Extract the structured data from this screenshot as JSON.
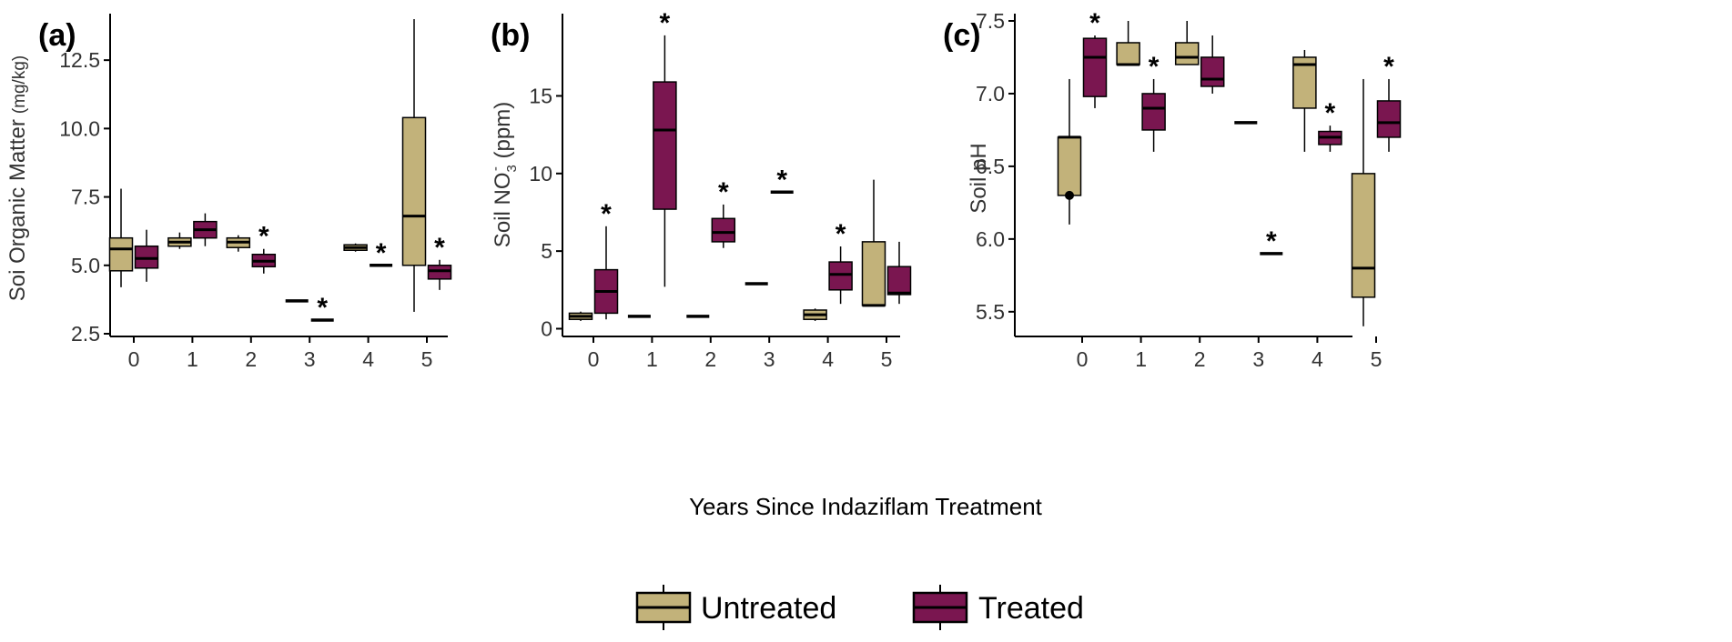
{
  "colors": {
    "untreated": "#C2B27A",
    "treated": "#7A1650",
    "axis": "#000000",
    "outlier": "#000000"
  },
  "common": {
    "xlabel": "Years Since Indaziflam Treatment",
    "legend": {
      "untreated": "Untreated",
      "treated": "Treated"
    }
  },
  "chart_data": [
    {
      "type": "boxplot",
      "panel_label": "(a)",
      "ylabel_main": "Soi Organic Matter",
      "ylabel_unit": "(mg/kg)",
      "xlabel": "Years Since Indaziflam Treatment",
      "categories": [
        "0",
        "1",
        "2",
        "3",
        "4",
        "5"
      ],
      "ylim": [
        2.4,
        14.2
      ],
      "yticks": [
        2.5,
        5.0,
        7.5,
        10.0,
        12.5
      ],
      "ytick_labels": [
        "2.5",
        "5.0",
        "7.5",
        "10.0",
        "12.5"
      ],
      "series": [
        {
          "name": "Untreated",
          "boxes": [
            {
              "min": 4.2,
              "q1": 4.8,
              "median": 5.6,
              "q3": 6.0,
              "max": 7.8
            },
            {
              "min": 5.6,
              "q1": 5.7,
              "median": 5.85,
              "q3": 6.0,
              "max": 6.2
            },
            {
              "min": 5.5,
              "q1": 5.65,
              "median": 5.85,
              "q3": 6.0,
              "max": 6.1
            },
            {
              "min": 3.7,
              "q1": 3.7,
              "median": 3.7,
              "q3": 3.7,
              "max": 3.7
            },
            {
              "min": 5.5,
              "q1": 5.55,
              "median": 5.65,
              "q3": 5.75,
              "max": 5.8
            },
            {
              "min": 3.3,
              "q1": 5.0,
              "median": 6.8,
              "q3": 10.4,
              "max": 14.0
            }
          ]
        },
        {
          "name": "Treated",
          "boxes": [
            {
              "min": 4.4,
              "q1": 4.9,
              "median": 5.25,
              "q3": 5.7,
              "max": 6.3
            },
            {
              "min": 5.7,
              "q1": 6.0,
              "median": 6.3,
              "q3": 6.6,
              "max": 6.9
            },
            {
              "min": 4.7,
              "q1": 4.95,
              "median": 5.15,
              "q3": 5.4,
              "max": 5.6
            },
            {
              "min": 3.0,
              "q1": 3.0,
              "median": 3.0,
              "q3": 3.0,
              "max": 3.0
            },
            {
              "min": 5.0,
              "q1": 5.0,
              "median": 5.0,
              "q3": 5.0,
              "max": 5.0
            },
            {
              "min": 4.1,
              "q1": 4.5,
              "median": 4.8,
              "q3": 5.0,
              "max": 5.2
            }
          ]
        }
      ],
      "significant_treated": [
        false,
        false,
        true,
        true,
        true,
        true
      ],
      "significance_marker": "*",
      "outliers": []
    },
    {
      "type": "boxplot",
      "panel_label": "(b)",
      "ylabel_pre": "Soil  NO",
      "ylabel_sub": "3",
      "ylabel_sup": "-",
      "ylabel_post": " (ppm)",
      "xlabel": "Years Since Indaziflam Treatment",
      "categories": [
        "0",
        "1",
        "2",
        "3",
        "4",
        "5"
      ],
      "ylim": [
        -0.5,
        20.3
      ],
      "yticks": [
        0,
        5,
        10,
        15
      ],
      "ytick_labels": [
        "0",
        "5",
        "10",
        "15"
      ],
      "series": [
        {
          "name": "Untreated",
          "boxes": [
            {
              "min": 0.5,
              "q1": 0.6,
              "median": 0.8,
              "q3": 1.0,
              "max": 1.1
            },
            {
              "min": 0.8,
              "q1": 0.8,
              "median": 0.8,
              "q3": 0.8,
              "max": 0.8
            },
            {
              "min": 0.8,
              "q1": 0.8,
              "median": 0.8,
              "q3": 0.8,
              "max": 0.8
            },
            {
              "min": 2.9,
              "q1": 2.9,
              "median": 2.9,
              "q3": 2.9,
              "max": 2.9
            },
            {
              "min": 0.5,
              "q1": 0.6,
              "median": 0.9,
              "q3": 1.2,
              "max": 1.3
            },
            {
              "min": 1.5,
              "q1": 1.5,
              "median": 1.5,
              "q3": 5.6,
              "max": 9.6
            }
          ]
        },
        {
          "name": "Treated",
          "boxes": [
            {
              "min": 0.6,
              "q1": 1.0,
              "median": 2.4,
              "q3": 3.8,
              "max": 6.6
            },
            {
              "min": 2.7,
              "q1": 7.7,
              "median": 12.8,
              "q3": 15.9,
              "max": 18.9
            },
            {
              "min": 5.2,
              "q1": 5.6,
              "median": 6.2,
              "q3": 7.1,
              "max": 8.0
            },
            {
              "min": 8.8,
              "q1": 8.8,
              "median": 8.8,
              "q3": 8.8,
              "max": 8.8
            },
            {
              "min": 1.6,
              "q1": 2.5,
              "median": 3.5,
              "q3": 4.3,
              "max": 5.3
            },
            {
              "min": 1.6,
              "q1": 2.2,
              "median": 2.3,
              "q3": 4.0,
              "max": 5.6
            }
          ]
        }
      ],
      "significant_treated": [
        true,
        true,
        true,
        true,
        true,
        false
      ],
      "significance_marker": "*",
      "outliers": []
    },
    {
      "type": "boxplot",
      "panel_label": "(c)",
      "ylabel": "Soil pH",
      "xlabel": "Years Since Indaziflam Treatment",
      "categories": [
        "0",
        "1",
        "2",
        "3",
        "4",
        "5"
      ],
      "ylim": [
        5.33,
        7.55
      ],
      "yticks": [
        5.5,
        6.0,
        6.5,
        7.0,
        7.5
      ],
      "ytick_labels": [
        "5.5",
        "6.0",
        "6.5",
        "7.0",
        "7.5"
      ],
      "series": [
        {
          "name": "Untreated",
          "boxes": [
            {
              "min": 6.1,
              "q1": 6.3,
              "median": 6.7,
              "q3": 6.7,
              "max": 7.1
            },
            {
              "min": 7.2,
              "q1": 7.2,
              "median": 7.2,
              "q3": 7.35,
              "max": 7.5
            },
            {
              "min": 7.2,
              "q1": 7.2,
              "median": 7.25,
              "q3": 7.35,
              "max": 7.5
            },
            {
              "min": 6.8,
              "q1": 6.8,
              "median": 6.8,
              "q3": 6.8,
              "max": 6.8
            },
            {
              "min": 6.6,
              "q1": 6.9,
              "median": 7.2,
              "q3": 7.25,
              "max": 7.3
            },
            {
              "min": 5.4,
              "q1": 5.6,
              "median": 5.8,
              "q3": 6.45,
              "max": 7.1
            }
          ]
        },
        {
          "name": "Treated",
          "boxes": [
            {
              "min": 6.9,
              "q1": 6.98,
              "median": 7.25,
              "q3": 7.38,
              "max": 7.4
            },
            {
              "min": 6.6,
              "q1": 6.75,
              "median": 6.9,
              "q3": 7.0,
              "max": 7.1
            },
            {
              "min": 7.0,
              "q1": 7.05,
              "median": 7.1,
              "q3": 7.25,
              "max": 7.4
            },
            {
              "min": 5.9,
              "q1": 5.9,
              "median": 5.9,
              "q3": 5.9,
              "max": 5.9
            },
            {
              "min": 6.6,
              "q1": 6.65,
              "median": 6.7,
              "q3": 6.74,
              "max": 6.78
            },
            {
              "min": 6.6,
              "q1": 6.7,
              "median": 6.8,
              "q3": 6.95,
              "max": 7.1
            }
          ]
        }
      ],
      "significant_treated": [
        true,
        true,
        false,
        true,
        true,
        true
      ],
      "significance_marker": "*",
      "outliers": [
        {
          "category": "0",
          "series": "Untreated",
          "value": 6.3
        }
      ]
    }
  ]
}
